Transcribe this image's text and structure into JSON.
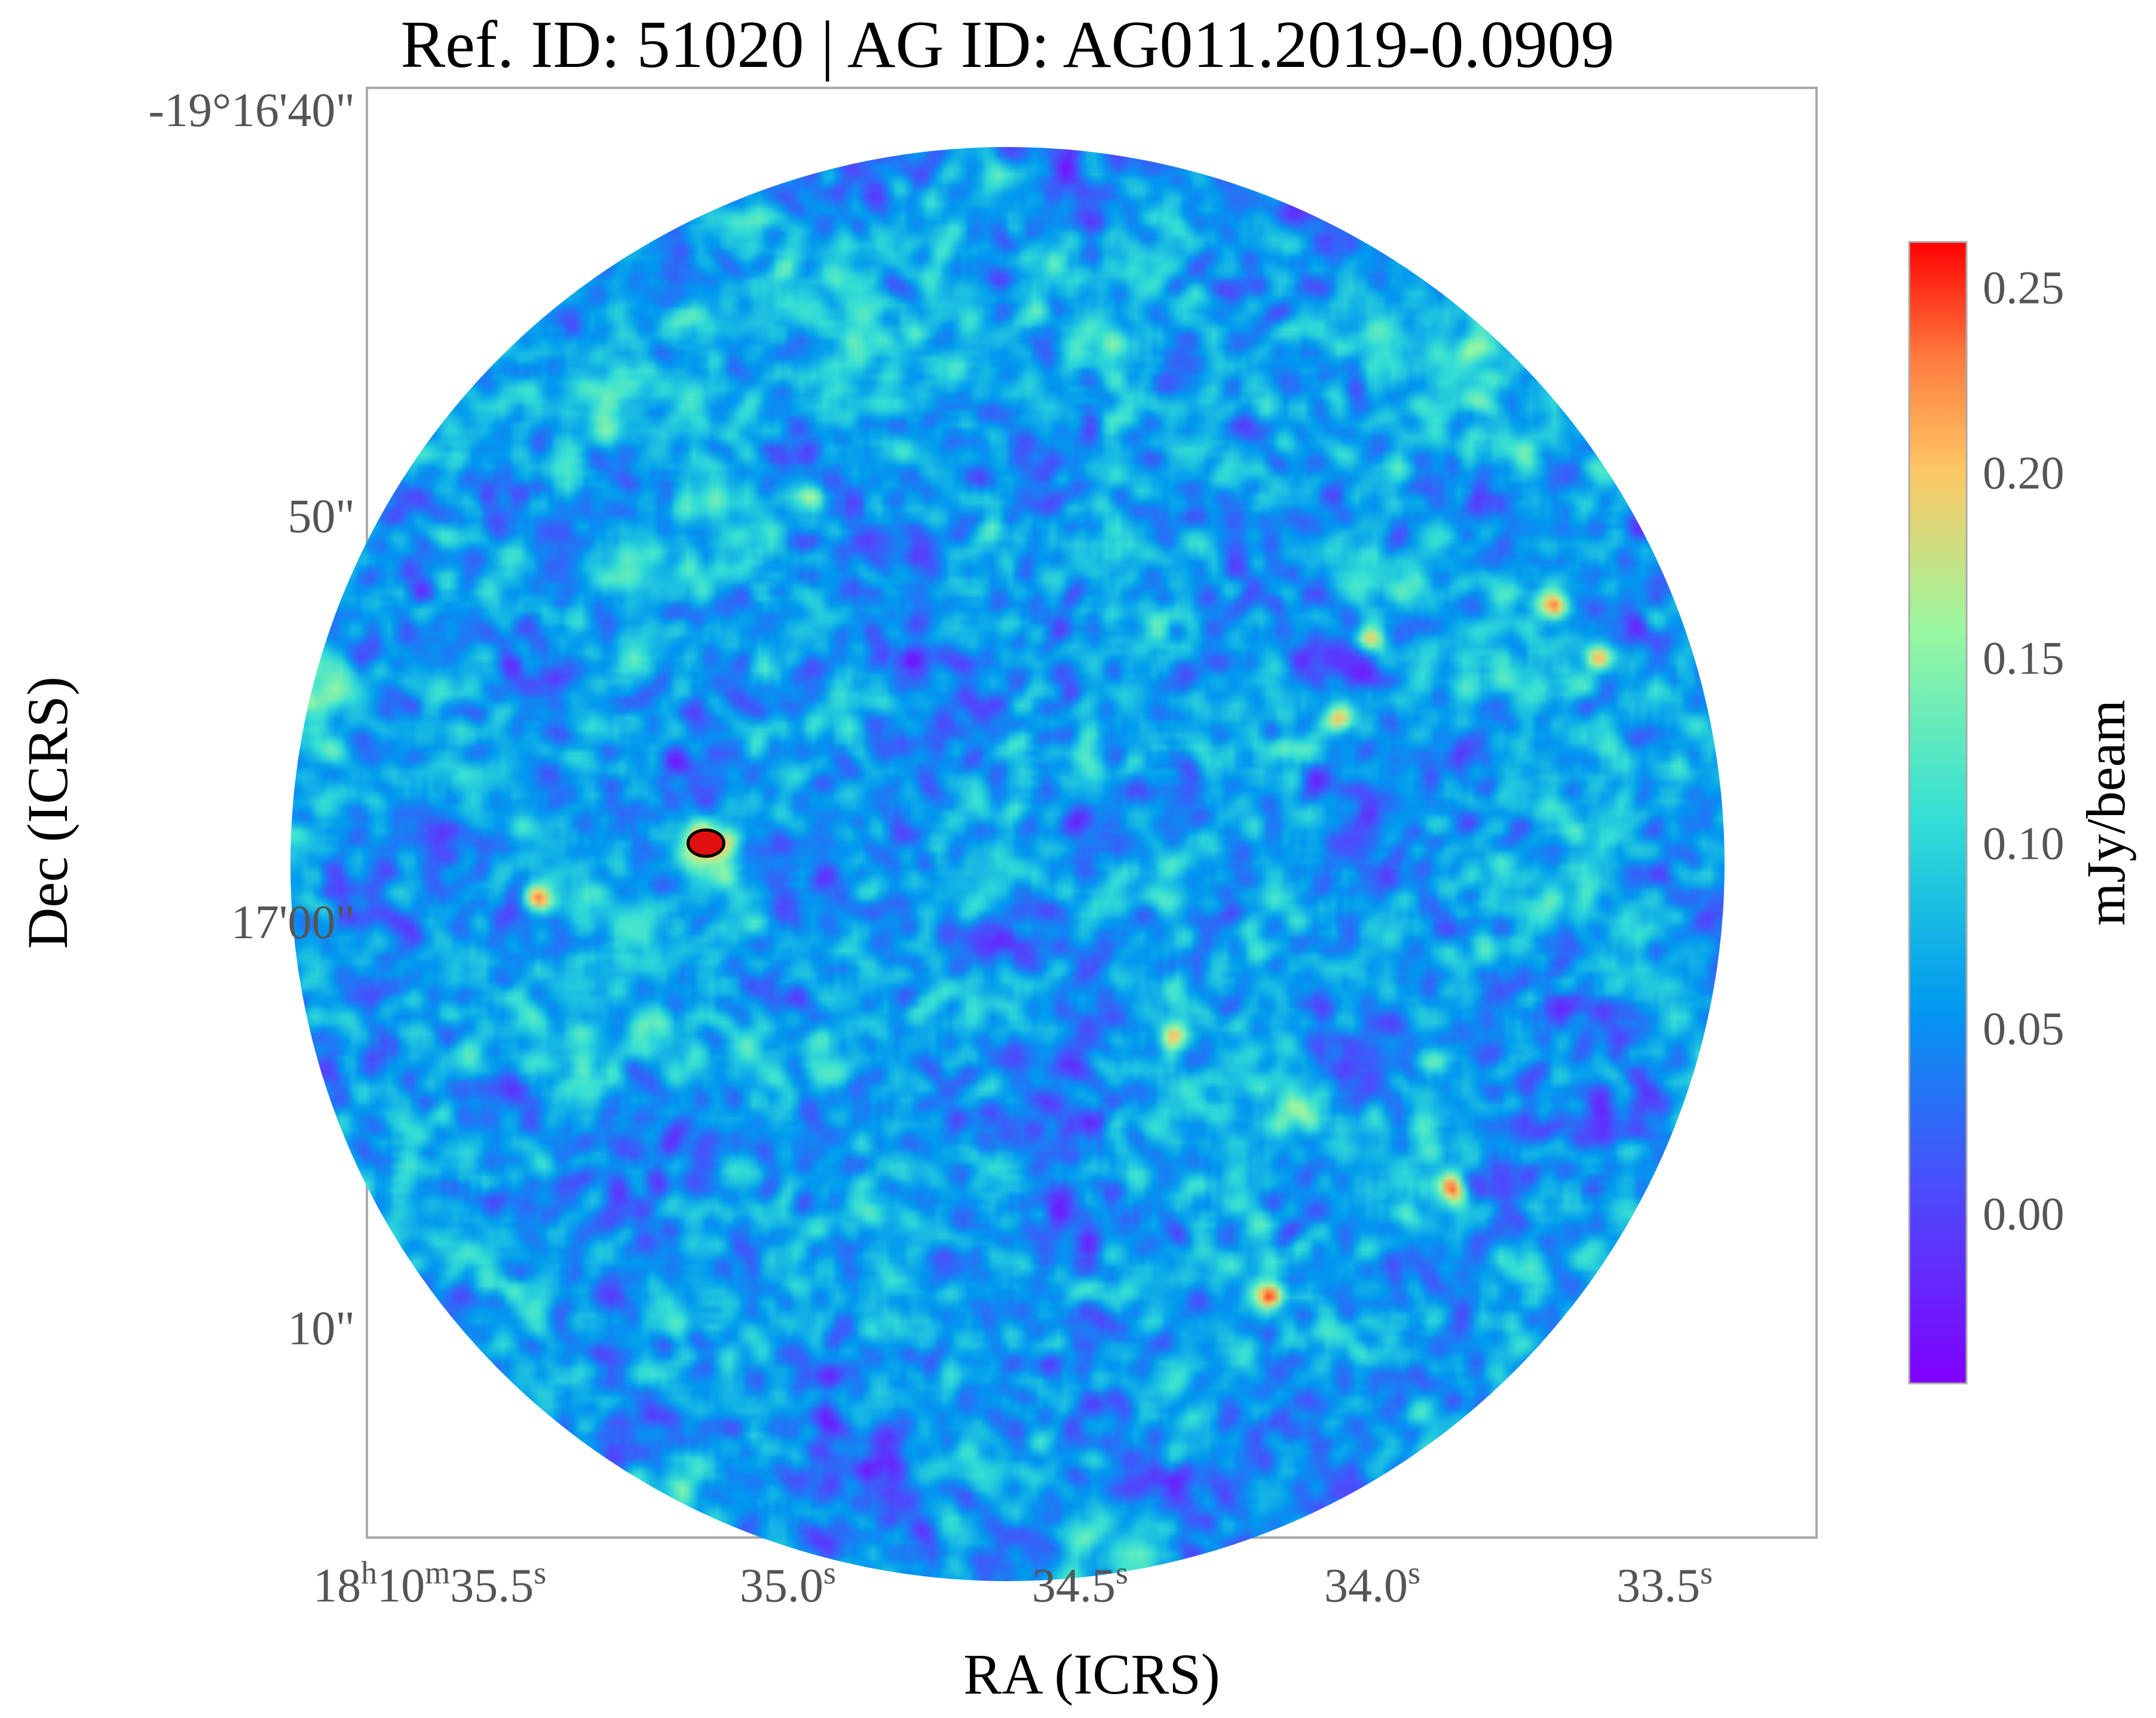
{
  "chart_data": {
    "type": "heatmap",
    "title": "Ref. ID: 51020 | AG ID: AG011.2019-0.0909",
    "xlabel": "RA (ICRS)",
    "ylabel": "Dec (ICRS)",
    "x_ticks": [
      {
        "main": "18",
        "sup1": "h",
        "mid": "10",
        "sup2": "m",
        "tail": "35.5",
        "sup3": "s",
        "value_sec": 35.5
      },
      {
        "main": "35.0",
        "sup": "s",
        "value_sec": 35.0
      },
      {
        "main": "34.5",
        "sup": "s",
        "value_sec": 34.5
      },
      {
        "main": "34.0",
        "sup": "s",
        "value_sec": 34.0
      },
      {
        "main": "33.5",
        "sup": "s",
        "value_sec": 33.5
      }
    ],
    "y_ticks": [
      {
        "label": "-19°16'40\"",
        "value_arcsec": -40
      },
      {
        "label": "50\"",
        "value_arcsec": -50
      },
      {
        "label": "17'00\"",
        "value_arcsec": -60
      },
      {
        "label": "10\"",
        "value_arcsec": -70
      }
    ],
    "xlim_sec": [
      35.72,
      33.24
    ],
    "ylim_arcsec": [
      -39.5,
      -75.2
    ],
    "colorbar": {
      "label": "mJy/beam",
      "ticks": [
        "0.25",
        "0.20",
        "0.15",
        "0.10",
        "0.05",
        "0.00"
      ],
      "tick_values": [
        0.25,
        0.2,
        0.15,
        0.1,
        0.05,
        0.0
      ],
      "range": [
        -0.046,
        0.262
      ],
      "colormap": "rainbow"
    },
    "field": "circular primary-beam field, noise-dominated emission",
    "sources": [
      {
        "ra_sec": 35.14,
        "dec_arcsec": -58.1,
        "peak": 0.28,
        "contoured": true
      },
      {
        "ra_sec": 35.43,
        "dec_arcsec": -59.4,
        "peak": 0.25
      },
      {
        "ra_sec": 34.18,
        "dec_arcsec": -69.2,
        "peak": 0.25
      },
      {
        "ra_sec": 33.69,
        "dec_arcsec": -52.2,
        "peak": 0.23
      },
      {
        "ra_sec": 33.87,
        "dec_arcsec": -66.5,
        "peak": 0.22
      },
      {
        "ra_sec": 34.01,
        "dec_arcsec": -53.0,
        "peak": 0.21
      },
      {
        "ra_sec": 33.62,
        "dec_arcsec": -53.5,
        "peak": 0.2
      },
      {
        "ra_sec": 34.06,
        "dec_arcsec": -55.0,
        "peak": 0.19
      },
      {
        "ra_sec": 34.96,
        "dec_arcsec": -49.5,
        "peak": 0.19
      },
      {
        "ra_sec": 33.95,
        "dec_arcsec": -42.2,
        "peak": 0.19
      },
      {
        "ra_sec": 34.35,
        "dec_arcsec": -62.8,
        "peak": 0.18
      }
    ]
  }
}
